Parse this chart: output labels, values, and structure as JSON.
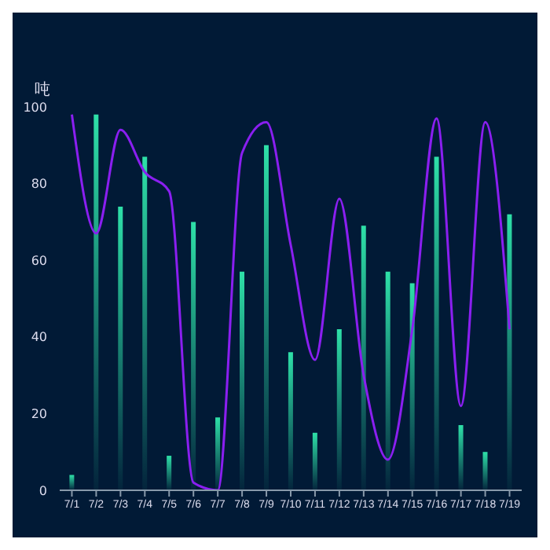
{
  "chart_data": {
    "type": "bar",
    "ylabel": "吨",
    "categories": [
      "7/1",
      "7/2",
      "7/3",
      "7/4",
      "7/5",
      "7/6",
      "7/7",
      "7/8",
      "7/9",
      "7/10",
      "7/11",
      "7/12",
      "7/13",
      "7/14",
      "7/15",
      "7/16",
      "7/17",
      "7/18",
      "7/19"
    ],
    "series": [
      {
        "color": "#2ee0a8",
        "values": [
          4,
          98,
          74,
          87,
          9,
          70,
          19,
          57,
          90,
          36,
          15,
          42,
          69,
          57,
          54,
          87,
          17,
          10,
          72
        ]
      },
      {
        "type": "line",
        "color": "#8a1ff0",
        "values": [
          98,
          67,
          94,
          83,
          78,
          2,
          0,
          88,
          96,
          64,
          34,
          76,
          30,
          8,
          42,
          97,
          22,
          96,
          42
        ]
      }
    ],
    "ylim": [
      0,
      100
    ],
    "yticks": [
      0,
      20,
      40,
      60,
      80,
      100
    ],
    "grid": false,
    "legend": false,
    "marker": "none",
    "line_style": "solid"
  }
}
